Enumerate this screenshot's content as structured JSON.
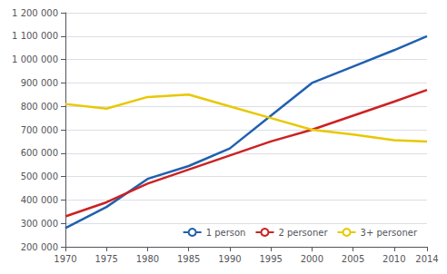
{
  "chart_data": {
    "type": "line",
    "x": [
      1970,
      1975,
      1980,
      1985,
      1990,
      1995,
      2000,
      2005,
      2010,
      2014
    ],
    "series": [
      {
        "name": "1 person",
        "color": "#2060b0",
        "values": [
          280000,
          370000,
          490000,
          545000,
          620000,
          760000,
          900000,
          970000,
          1040000,
          1100000
        ]
      },
      {
        "name": "2 personer",
        "color": "#cc2222",
        "values": [
          330000,
          390000,
          470000,
          530000,
          590000,
          650000,
          700000,
          760000,
          820000,
          870000
        ]
      },
      {
        "name": "3+ personer",
        "color": "#e8c800",
        "values": [
          810000,
          790000,
          840000,
          850000,
          800000,
          750000,
          700000,
          680000,
          655000,
          650000
        ]
      }
    ],
    "xlim": [
      1970,
      2014
    ],
    "xticks": [
      1970,
      1975,
      1980,
      1985,
      1990,
      1995,
      2000,
      2005,
      2010,
      2014
    ],
    "ylim": [
      200000,
      1200000
    ],
    "yticks": [
      {
        "value": 200000,
        "label": "200 000"
      },
      {
        "value": 300000,
        "label": "300 000"
      },
      {
        "value": 400000,
        "label": "400 000"
      },
      {
        "value": 500000,
        "label": "500 000"
      },
      {
        "value": 600000,
        "label": "600 000"
      },
      {
        "value": 700000,
        "label": "700 000"
      },
      {
        "value": 800000,
        "label": "800 000"
      },
      {
        "value": 900000,
        "label": "900 000"
      },
      {
        "value": 1000000,
        "label": "1 000 000"
      },
      {
        "value": 1100000,
        "label": "1 100 000"
      },
      {
        "value": 1200000,
        "label": "1 200 000"
      }
    ],
    "grid": true,
    "legend": "lower right"
  }
}
